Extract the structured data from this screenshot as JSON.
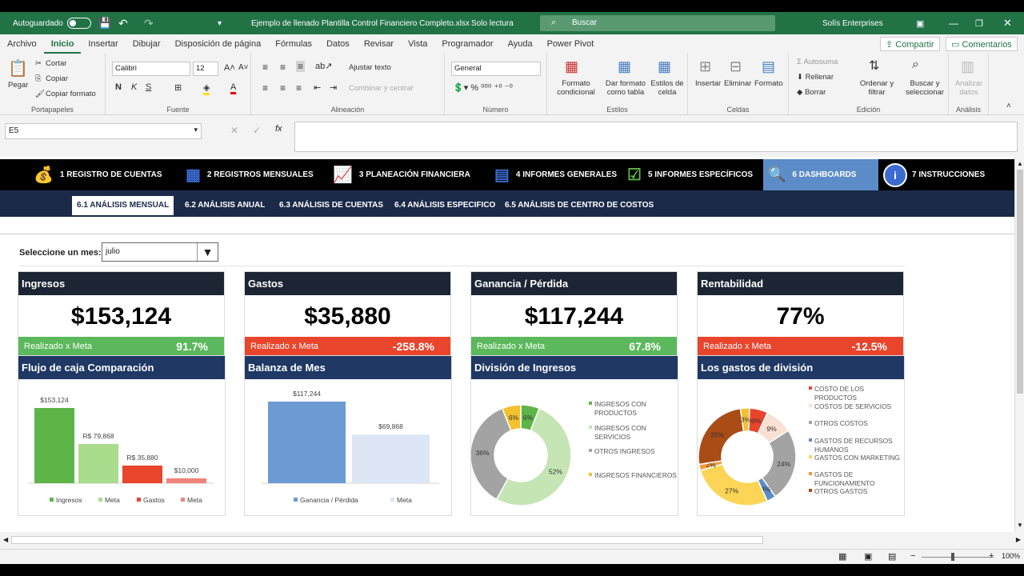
{
  "titlebar": {
    "autosave": "Autoguardado",
    "filename": "Ejemplo de llenado Plantilla Control Financiero Completo.xlsx",
    "readonly": "Solo lectura",
    "search": "Buscar",
    "user": "Solís Enterprises"
  },
  "tabs": [
    "Archivo",
    "Inicio",
    "Insertar",
    "Dibujar",
    "Disposición de página",
    "Fórmulas",
    "Datos",
    "Revisar",
    "Vista",
    "Programador",
    "Ayuda",
    "Power Pivot"
  ],
  "share": "Compartir",
  "comments": "Comentarios",
  "ribbon": {
    "portapapeles": {
      "label": "Portapapeles",
      "pegar": "Pegar",
      "cortar": "Cortar",
      "copiar": "Copiar",
      "copiar_formato": "Copiar formato"
    },
    "fuente": {
      "label": "Fuente",
      "font": "Calibri",
      "size": "12"
    },
    "alineacion": {
      "label": "Alineación",
      "ajustar": "Ajustar texto",
      "combinar": "Combinar y centrar"
    },
    "numero": {
      "label": "Número",
      "format": "General"
    },
    "estilos": {
      "label": "Estilos",
      "formato_cond": "Formato condicional",
      "formato_tabla": "Dar formato como tabla",
      "estilos_celda": "Estilos de celda"
    },
    "celdas": {
      "label": "Celdas",
      "insertar": "Insertar",
      "eliminar": "Eliminar",
      "formato": "Formato"
    },
    "edicion": {
      "label": "Edición",
      "autosuma": "Autosuma",
      "rellenar": "Rellenar",
      "borrar": "Borrar",
      "ordenar": "Ordenar y filtrar",
      "buscar": "Buscar y seleccionar"
    },
    "analisis": {
      "label": "Análisis",
      "analizar": "Analizar datos"
    }
  },
  "namebox": "E5",
  "nav": [
    "1 REGISTRO DE CUENTAS",
    "2 REGISTROS MENSUALES",
    "3 PLANEACIÓN FINANCIERA",
    "4 INFORMES GENERALES",
    "5 INFORMES ESPECÍFICOS",
    "6 DASHBOARDS",
    "7 INSTRUCCIONES"
  ],
  "subnav": [
    "6.1 ANÁLISIS MENSUAL",
    "6.2 ANÁLISIS ANUAL",
    "6.3 ANÁLISIS DE CUENTAS",
    "6.4 ANÁLISIS ESPECIFICO",
    "6.5 ANÁLISIS DE CENTRO DE COSTOS"
  ],
  "month_label": "Seleccione un mes:",
  "month_value": "julio",
  "kpis": [
    {
      "title": "Ingresos",
      "value": "$153,124",
      "foot": "Realizado x Meta",
      "pct": "91.7%",
      "color": "#5cb85c"
    },
    {
      "title": "Gastos",
      "value": "$35,880",
      "foot": "Realizado x Meta",
      "pct": "-258.8%",
      "color": "#e8452c"
    },
    {
      "title": "Ganancia / Pérdida",
      "value": "$117,244",
      "foot": "Realizado x Meta",
      "pct": "67.8%",
      "color": "#5cb85c"
    },
    {
      "title": "Rentabilidad",
      "value": "77%",
      "foot": "Realizado x Meta",
      "pct": "-12.5%",
      "color": "#e8452c"
    }
  ],
  "chart_titles": [
    "Flujo de caja Comparación",
    "Balanza de Mes",
    "División de Ingresos",
    "Los gastos de división"
  ],
  "chart_data": [
    {
      "type": "bar",
      "categories": [
        "Ingresos",
        "Meta",
        "Gastos",
        "Meta"
      ],
      "values": [
        153124,
        79868,
        35880,
        10000
      ],
      "labels": [
        "$153,124",
        "R$ 79,868",
        "R$ 35,880",
        "$10,000"
      ],
      "colors": [
        "#5db548",
        "#a9dc8d",
        "#e8452c",
        "#f0837a"
      ],
      "legend": [
        "Ingresos",
        "Meta",
        "Gastos",
        "Meta"
      ]
    },
    {
      "type": "bar",
      "categories": [
        "Ganancia / Pérdida",
        "Meta"
      ],
      "values": [
        117244,
        69868
      ],
      "labels": [
        "$117,244",
        "$69,868"
      ],
      "colors": [
        "#6b9bd2",
        "#dce6f5"
      ],
      "legend": [
        "Ganancia / Pérdida",
        "Meta"
      ]
    },
    {
      "type": "pie",
      "slices": [
        {
          "name": "INGRESOS CON PRODUCTOS",
          "value": 6,
          "color": "#5db548"
        },
        {
          "name": "INGRESOS CON SERVICIOS",
          "value": 52,
          "color": "#c5e5b4"
        },
        {
          "name": "OTROS INGRESOS",
          "value": 36,
          "color": "#a3a3a3"
        },
        {
          "name": "INGRESOS FINANCIEROS",
          "value": 6,
          "color": "#f2c12e"
        }
      ]
    },
    {
      "type": "pie",
      "slices": [
        {
          "name": "COSTO DE LOS PRODUCTOS",
          "value": 6,
          "color": "#e8452c"
        },
        {
          "name": "COSTOS DE SERVICIOS",
          "value": 9,
          "color": "#f9e0d2"
        },
        {
          "name": "OTROS COSTOS",
          "value": 24,
          "color": "#a3a3a3"
        },
        {
          "name": "GASTOS DE RECURSOS HUMANOS",
          "value": 3,
          "color": "#5b8cc8"
        },
        {
          "name": "GASTOS CON MARKETING",
          "value": 27,
          "color": "#fcd556"
        },
        {
          "name": "GASTOS DE FUNCIONAMIENTO",
          "value": 2,
          "color": "#f29b3a"
        },
        {
          "name": "OTROS GASTOS",
          "value": 25,
          "color": "#a94c16"
        },
        {
          "name": "",
          "value": 3,
          "color": "#f2c12e"
        }
      ],
      "labels": [
        "6%",
        "9%",
        "24%",
        "3%",
        "27%",
        "2%",
        "25%",
        "3%"
      ]
    }
  ],
  "zoom": "100%"
}
